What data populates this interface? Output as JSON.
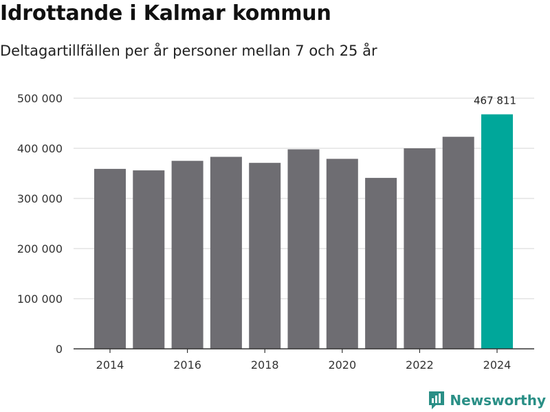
{
  "chart_data": {
    "type": "bar",
    "title": "Idrottande i Kalmar kommun",
    "subtitle": "Deltagartillfällen per år personer mellan 7 och 25 år",
    "xlabel": "",
    "ylabel": "",
    "categories": [
      "2014",
      "2015",
      "2016",
      "2017",
      "2018",
      "2019",
      "2020",
      "2021",
      "2022",
      "2023",
      "2024"
    ],
    "values": [
      359000,
      356000,
      375000,
      383000,
      371000,
      398000,
      379000,
      341000,
      400000,
      423000,
      467811
    ],
    "highlight_index": 10,
    "data_labels": [
      {
        "index": 10,
        "text": "467 811"
      }
    ],
    "x_tick_labels": [
      "2014",
      "2016",
      "2018",
      "2020",
      "2022",
      "2024"
    ],
    "y_ticks": [
      {
        "value": 0,
        "label": "0"
      },
      {
        "value": 100000,
        "label": "100 000"
      },
      {
        "value": 200000,
        "label": "200 000"
      },
      {
        "value": 300000,
        "label": "300 000"
      },
      {
        "value": 400000,
        "label": "400 000"
      },
      {
        "value": 500000,
        "label": "500 000"
      }
    ],
    "ylim": [
      0,
      500000
    ],
    "grid": true,
    "colors": {
      "bar": "#6e6d72",
      "highlight": "#00a79a",
      "grid": "#dddddd",
      "axis": "#333333"
    }
  },
  "branding": {
    "name": "Newsworthy",
    "icon": "newsworthy-logo-icon",
    "color": "#2a8f86"
  }
}
